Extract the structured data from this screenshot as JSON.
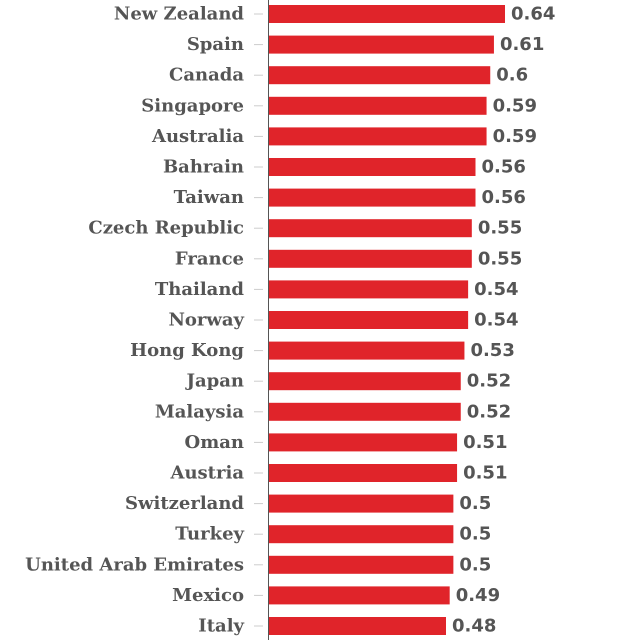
{
  "chart_data": {
    "type": "bar",
    "orientation": "horizontal",
    "title": "",
    "xlabel": "",
    "ylabel": "",
    "categories": [
      "New Zealand",
      "Spain",
      "Canada",
      "Singapore",
      "Australia",
      "Bahrain",
      "Taiwan",
      "Czech Republic",
      "France",
      "Thailand",
      "Norway",
      "Hong Kong",
      "Japan",
      "Malaysia",
      "Oman",
      "Austria",
      "Switzerland",
      "Turkey",
      "United Arab Emirates",
      "Mexico",
      "Italy"
    ],
    "values": [
      0.64,
      0.61,
      0.6,
      0.59,
      0.59,
      0.56,
      0.56,
      0.55,
      0.55,
      0.54,
      0.54,
      0.53,
      0.52,
      0.52,
      0.51,
      0.51,
      0.5,
      0.5,
      0.5,
      0.49,
      0.48
    ],
    "value_labels": [
      "0.64",
      "0.61",
      "0.6",
      "0.59",
      "0.59",
      "0.56",
      "0.56",
      "0.55",
      "0.55",
      "0.54",
      "0.54",
      "0.53",
      "0.52",
      "0.52",
      "0.51",
      "0.51",
      "0.5",
      "0.5",
      "0.5",
      "0.49",
      "0.48"
    ],
    "xlim": [
      0,
      0.64
    ],
    "bar_color": "#e0242a",
    "axis_color": "#555555",
    "tick_color": "#cccccc",
    "grid": false,
    "legend": "none"
  }
}
